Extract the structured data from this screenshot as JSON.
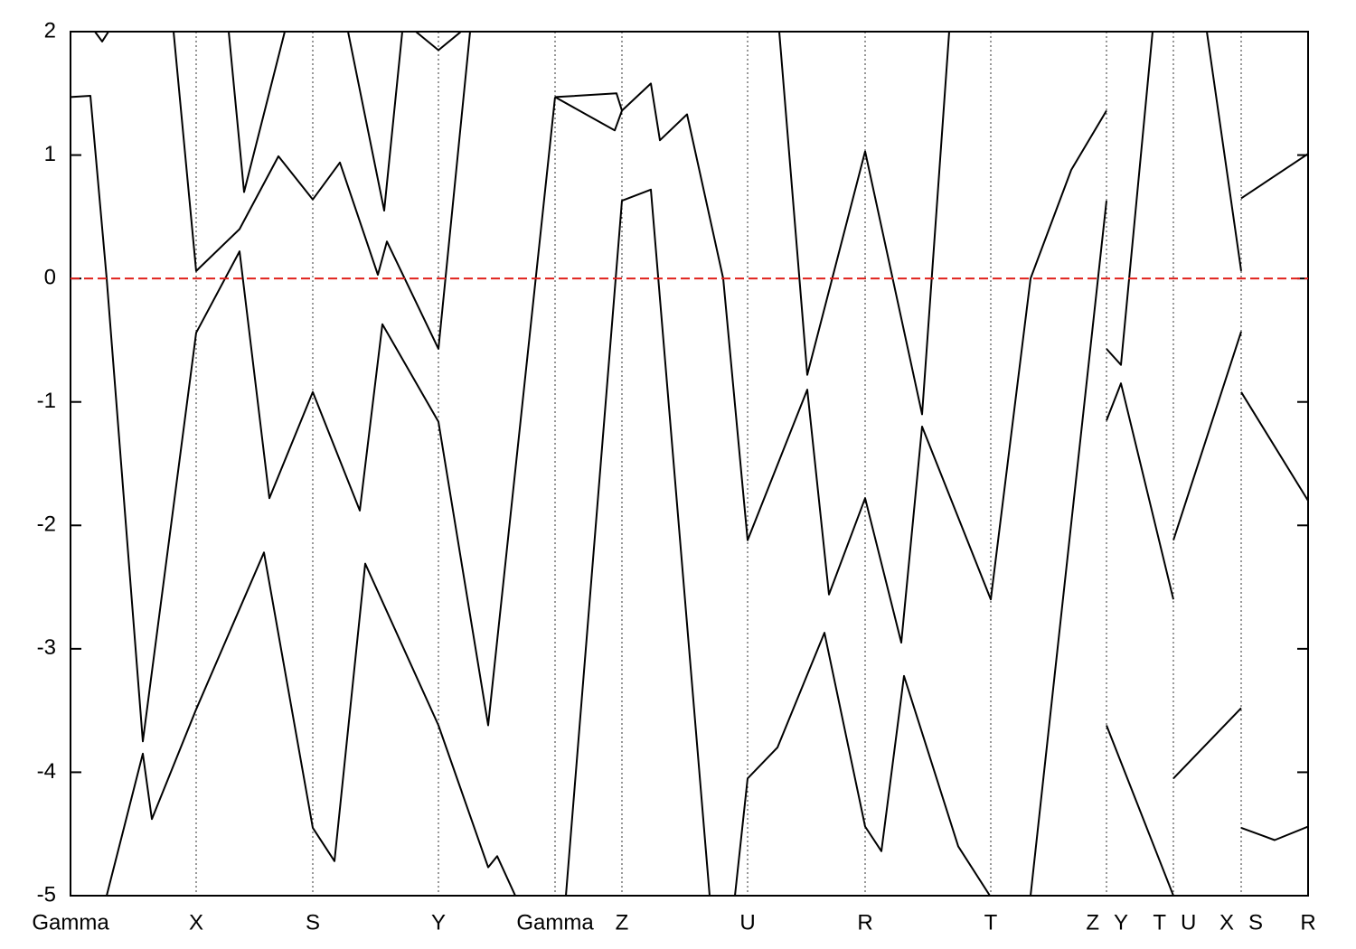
{
  "chart_data": {
    "type": "line",
    "xlim": [
      0,
      13.69
    ],
    "ylim": [
      -5,
      2
    ],
    "yticks": [
      -5,
      -4,
      -3,
      -2,
      -1,
      0,
      1,
      2
    ],
    "xticks": [
      {
        "value": 0,
        "label": "Gamma"
      },
      {
        "value": 1.39,
        "label": "X"
      },
      {
        "value": 2.68,
        "label": "S"
      },
      {
        "value": 4.07,
        "label": "Y"
      },
      {
        "value": 5.36,
        "label": "Gamma"
      },
      {
        "value": 6.1,
        "label": "Z"
      },
      {
        "value": 7.49,
        "label": "U"
      },
      {
        "value": 8.79,
        "label": "R"
      },
      {
        "value": 10.18,
        "label": "T"
      },
      {
        "value": 11.46,
        "label": "Z",
        "label_right": "Y"
      },
      {
        "value": 12.2,
        "label": "T",
        "label_right": "U"
      },
      {
        "value": 12.95,
        "label": "X",
        "label_right": "S"
      },
      {
        "value": 13.69,
        "label": "R"
      }
    ],
    "fermi_level": 0,
    "fermi_color": "#e0201b",
    "color": "#000000",
    "series": [
      {
        "x": [
          0,
          0.22,
          0.4,
          0.8,
          1.39,
          1.87,
          2.2,
          2.68,
          3.2,
          3.45,
          4.07,
          4.62,
          5.36
        ],
        "values": [
          1.47,
          1.48,
          0,
          -3.75,
          -0.44,
          0.22,
          -1.78,
          -0.92,
          -1.88,
          -0.37,
          -1.16,
          -3.62,
          1.47
        ]
      },
      {
        "x": [
          0.4,
          0.8,
          0.9,
          1.39,
          2.14,
          2.68,
          2.92,
          3.26,
          4.07,
          4.62,
          4.72,
          4.92
        ],
        "values": [
          -5,
          -3.85,
          -4.38,
          -3.49,
          -2.22,
          -4.45,
          -4.72,
          -2.31,
          -3.62,
          -4.77,
          -4.68,
          -5
        ]
      },
      {
        "x": [
          1.14,
          1.39,
          1.87,
          2.3,
          2.68,
          2.98,
          3.4,
          3.5,
          4.07,
          4.42
        ],
        "values": [
          2,
          0.06,
          0.4,
          0.99,
          0.64,
          0.94,
          0.03,
          0.3,
          -0.57,
          2
        ]
      },
      {
        "x": [
          1.75,
          1.92,
          2.37
        ],
        "values": [
          2,
          0.7,
          2
        ]
      },
      {
        "x": [
          3.07,
          3.47,
          3.67
        ],
        "values": [
          2,
          0.55,
          2
        ]
      },
      {
        "x": [
          3.82,
          4.07,
          4.32
        ],
        "values": [
          2,
          1.85,
          2
        ]
      },
      {
        "x": [
          0.27,
          0.35,
          0.42
        ],
        "values": [
          2,
          1.92,
          2
        ]
      },
      {
        "x": [
          5.36,
          6.04,
          6.1,
          6.42,
          6.52,
          6.82,
          7.22,
          7.49,
          8.15,
          8.39,
          8.79,
          9.19,
          9.42,
          10.18,
          10.62,
          11.07,
          11.46
        ],
        "values": [
          1.47,
          1.5,
          1.36,
          1.58,
          1.12,
          1.33,
          0,
          -2.12,
          -0.9,
          -2.56,
          -1.78,
          -2.95,
          -1.2,
          -2.6,
          0,
          0.88,
          1.36
        ]
      },
      {
        "x": [
          5.36,
          6.02,
          6.1
        ],
        "values": [
          1.47,
          1.2,
          1.36
        ]
      },
      {
        "x": [
          5.48,
          6.1,
          6.42,
          7.07
        ],
        "values": [
          -5,
          0.63,
          0.72,
          -5
        ]
      },
      {
        "x": [
          7.84,
          8.15,
          8.79,
          9.42,
          9.72
        ],
        "values": [
          2,
          -0.78,
          1.03,
          -1.1,
          2
        ]
      },
      {
        "x": [
          7.35,
          7.49,
          7.82,
          8.34,
          8.79,
          8.97,
          9.22,
          9.82,
          10.17
        ],
        "values": [
          -5,
          -4.05,
          -3.8,
          -2.87,
          -4.44,
          -4.64,
          -3.22,
          -4.6,
          -5
        ]
      },
      {
        "x": [
          10.62,
          11.46
        ],
        "values": [
          -5,
          0.63
        ]
      },
      {
        "x": [
          11.46,
          11.62,
          11.97
        ],
        "values": [
          -0.57,
          -0.7,
          2
        ]
      },
      {
        "x": [
          11.46,
          11.62,
          12.2
        ],
        "values": [
          -1.15,
          -0.85,
          -2.6
        ]
      },
      {
        "x": [
          11.46,
          12.2
        ],
        "values": [
          -3.62,
          -5.0
        ]
      },
      {
        "x": [
          12.2,
          12.95
        ],
        "values": [
          -2.12,
          -0.43
        ]
      },
      {
        "x": [
          12.2,
          12.95
        ],
        "values": [
          -4.05,
          -3.48
        ]
      },
      {
        "x": [
          12.57,
          12.95
        ],
        "values": [
          2,
          0.06
        ]
      },
      {
        "x": [
          12.95,
          13.69
        ],
        "values": [
          0.65,
          1.01
        ]
      },
      {
        "x": [
          12.95,
          13.69
        ],
        "values": [
          -0.92,
          -1.8
        ]
      },
      {
        "x": [
          12.95,
          13.32,
          13.69
        ],
        "values": [
          -4.45,
          -4.55,
          -4.44
        ]
      }
    ]
  }
}
